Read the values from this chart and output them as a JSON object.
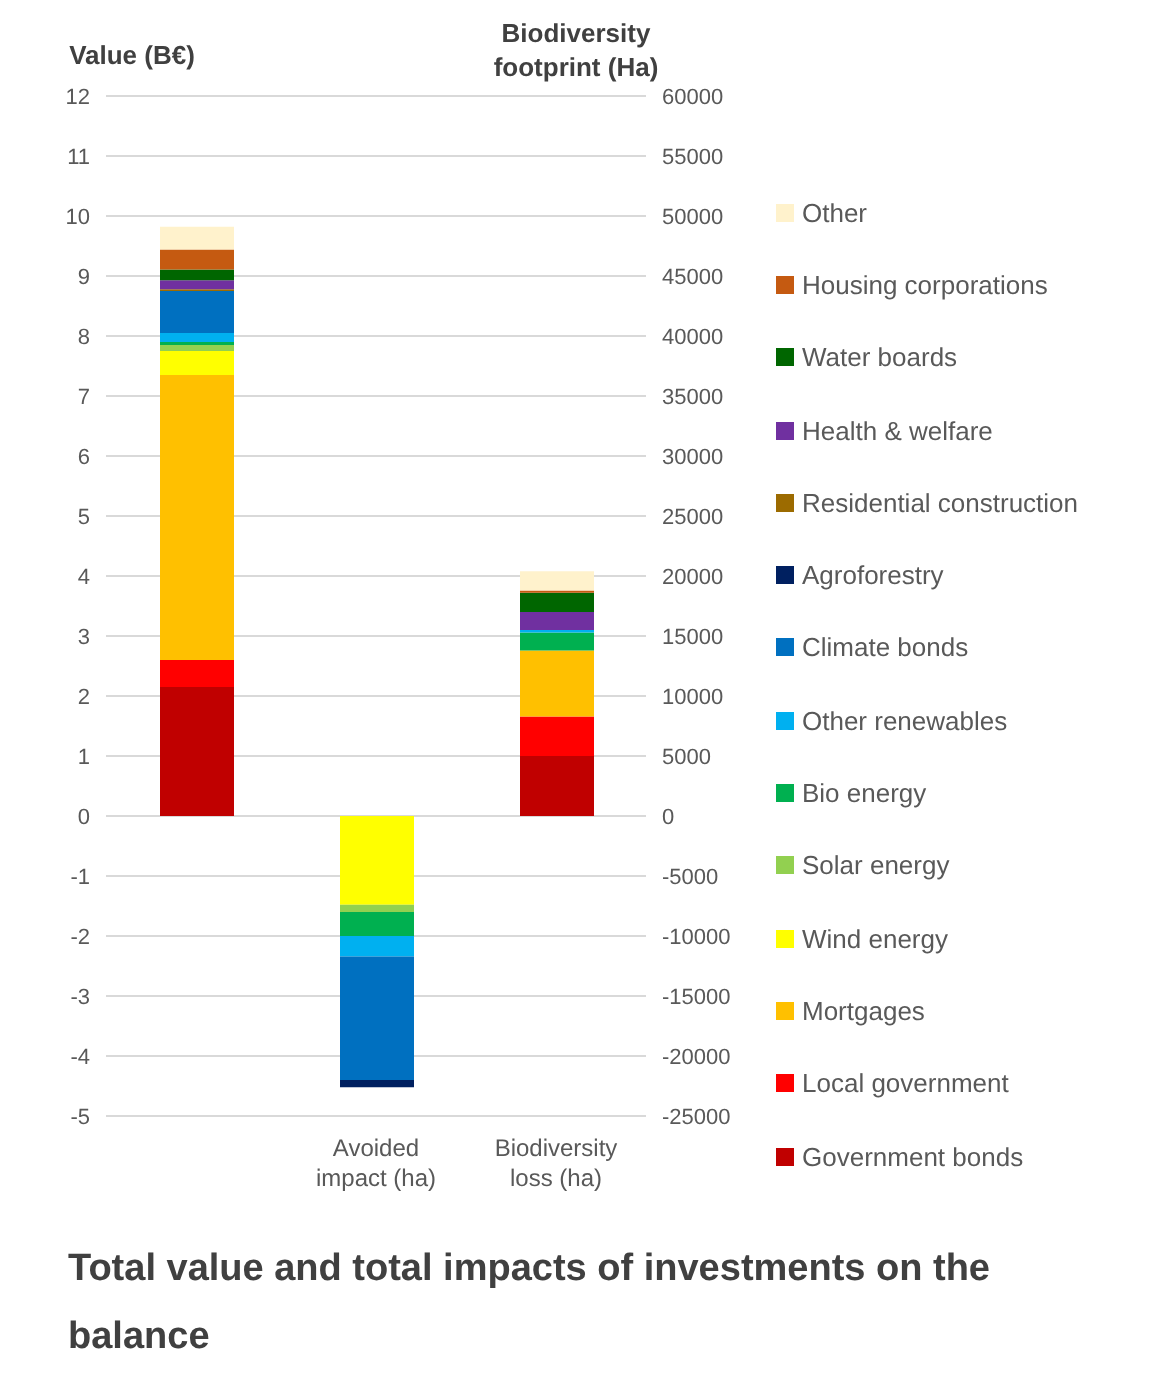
{
  "chart_data": {
    "type": "bar",
    "title": "Total value and total impacts of investments on the balance",
    "ylabel": "Value (B€)",
    "y2label": "Biodiversity footprint (Ha)",
    "categories": [
      null,
      "Avoided impact (ha)",
      "Biodiversity loss (ha)"
    ],
    "stacked": true,
    "grid": "y",
    "legend": "right",
    "ylim": [
      -5,
      12
    ],
    "yticks": [
      -5,
      -4,
      -3,
      -2,
      -1,
      0,
      1,
      2,
      3,
      4,
      5,
      6,
      7,
      8,
      9,
      10,
      11,
      12
    ],
    "y2lim": [
      -25000,
      60000
    ],
    "y2ticks": [
      -25000,
      -20000,
      -15000,
      -10000,
      -5000,
      0,
      5000,
      10000,
      15000,
      20000,
      25000,
      30000,
      35000,
      40000,
      45000,
      50000,
      55000,
      60000
    ],
    "series": [
      {
        "name": "Government bonds",
        "color": "#c00000",
        "values": [
          2.15,
          null,
          null
        ]
      },
      {
        "name": "Local government",
        "color": "#ff0000",
        "values": [
          0.45,
          null,
          null
        ]
      },
      {
        "name": "Mortgages",
        "color": "#ffc000",
        "values": [
          4.75,
          null,
          null
        ]
      },
      {
        "name": "Wind energy",
        "color": "#ffff00",
        "values": [
          0.4,
          null,
          null
        ]
      },
      {
        "name": "Solar energy",
        "color": "#92d050",
        "values": [
          0.1,
          null,
          null
        ]
      },
      {
        "name": "Bio energy",
        "color": "#00b050",
        "values": [
          0.05,
          null,
          null
        ]
      },
      {
        "name": "Other renewables",
        "color": "#00b0f0",
        "values": [
          0.15,
          null,
          null
        ]
      },
      {
        "name": "Climate bonds",
        "color": "#0070c0",
        "values": [
          0.7,
          null,
          null
        ]
      },
      {
        "name": "Agroforestry",
        "color": "#002060",
        "values": [
          0,
          null,
          null
        ]
      },
      {
        "name": "Residential construction",
        "color": "#9c6b00",
        "values": [
          0.03,
          null,
          null
        ]
      },
      {
        "name": "Health & welfare",
        "color": "#7030a0",
        "values": [
          0.15,
          null,
          null
        ]
      },
      {
        "name": "Water boards",
        "color": "#006600",
        "values": [
          0.18,
          null,
          null
        ]
      },
      {
        "name": "Housing corporations",
        "color": "#c55a11",
        "values": [
          0.33,
          null,
          null
        ]
      },
      {
        "name": "Other",
        "color": "#fff2cc",
        "values": [
          0.38,
          null,
          null
        ]
      },
      {
        "axis": "y2",
        "color": "#c00000",
        "values": [
          null,
          0,
          5000
        ]
      },
      {
        "axis": "y2",
        "color": "#ff0000",
        "values": [
          null,
          0,
          3300
        ]
      },
      {
        "axis": "y2",
        "color": "#ffc000",
        "values": [
          null,
          0,
          5500
        ]
      },
      {
        "axis": "y2",
        "color": "#ffff00",
        "values": [
          null,
          -7400,
          0
        ]
      },
      {
        "axis": "y2",
        "color": "#92d050",
        "values": [
          null,
          -600,
          0
        ]
      },
      {
        "axis": "y2",
        "color": "#00b050",
        "values": [
          null,
          -2000,
          1500
        ]
      },
      {
        "axis": "y2",
        "color": "#00b0f0",
        "values": [
          null,
          -1700,
          200
        ]
      },
      {
        "axis": "y2",
        "color": "#0070c0",
        "values": [
          null,
          -10300,
          0
        ]
      },
      {
        "axis": "y2",
        "color": "#002060",
        "values": [
          null,
          -600,
          0
        ]
      },
      {
        "axis": "y2",
        "color": "#9c6b00",
        "values": [
          null,
          0,
          0
        ]
      },
      {
        "axis": "y2",
        "color": "#7030a0",
        "values": [
          null,
          0,
          1500
        ]
      },
      {
        "axis": "y2",
        "color": "#006600",
        "values": [
          null,
          0,
          1600
        ]
      },
      {
        "axis": "y2",
        "color": "#c55a11",
        "values": [
          null,
          0,
          200
        ]
      },
      {
        "axis": "y2",
        "color": "#fff2cc",
        "values": [
          null,
          0,
          1600
        ]
      }
    ]
  }
}
